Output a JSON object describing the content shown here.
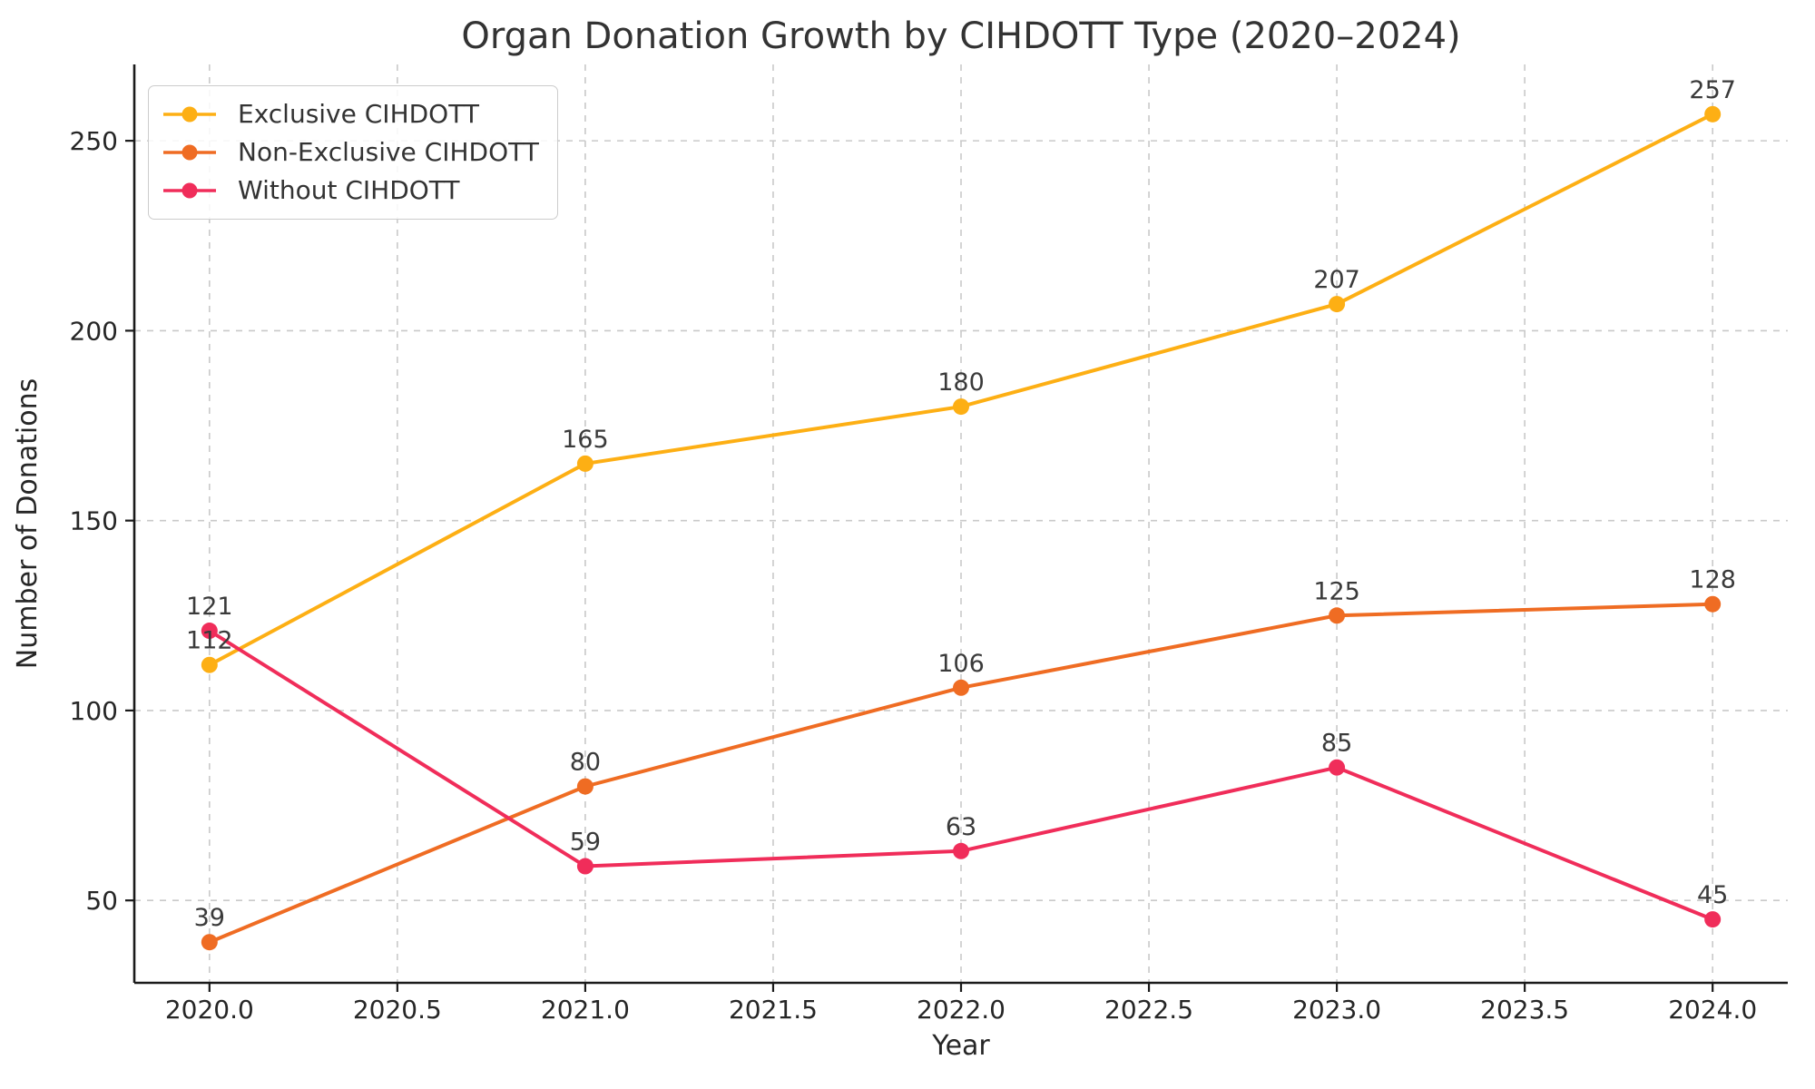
{
  "chart_data": {
    "type": "line",
    "title": "Organ Donation Growth by CIHDOTT Type (2020–2024)",
    "xlabel": "Year",
    "ylabel": "Number of Donations",
    "x": [
      2020,
      2021,
      2022,
      2023,
      2024
    ],
    "series": [
      {
        "name": "Exclusive CIHDOTT",
        "color": "#FDAF14",
        "values": [
          112,
          165,
          180,
          207,
          257
        ]
      },
      {
        "name": "Non-Exclusive CIHDOTT",
        "color": "#EF6C23",
        "values": [
          39,
          80,
          106,
          125,
          128
        ]
      },
      {
        "name": "Without CIHDOTT",
        "color": "#F02D5A",
        "values": [
          121,
          59,
          63,
          85,
          45
        ]
      }
    ],
    "point_labels_shown": true,
    "xticks": {
      "values": [
        2020,
        2020.5,
        2021,
        2021.5,
        2022,
        2022.5,
        2023,
        2023.5,
        2024
      ],
      "labels": [
        "2020.0",
        "2020.5",
        "2021.0",
        "2021.5",
        "2022.0",
        "2022.5",
        "2023.0",
        "2023.5",
        "2024.0"
      ]
    },
    "yticks": {
      "values": [
        50,
        100,
        150,
        200,
        250
      ],
      "labels": [
        "50",
        "100",
        "150",
        "200",
        "250"
      ]
    },
    "xlim": [
      2019.8,
      2024.2
    ],
    "ylim": [
      28.3,
      270.1
    ],
    "grid": "dashed-both-axes",
    "legend_position": "upper-left",
    "colors": {
      "grid": "#c9c9c9",
      "axis": "#1a1a1a",
      "text": "#333333",
      "background": "#ffffff"
    }
  }
}
